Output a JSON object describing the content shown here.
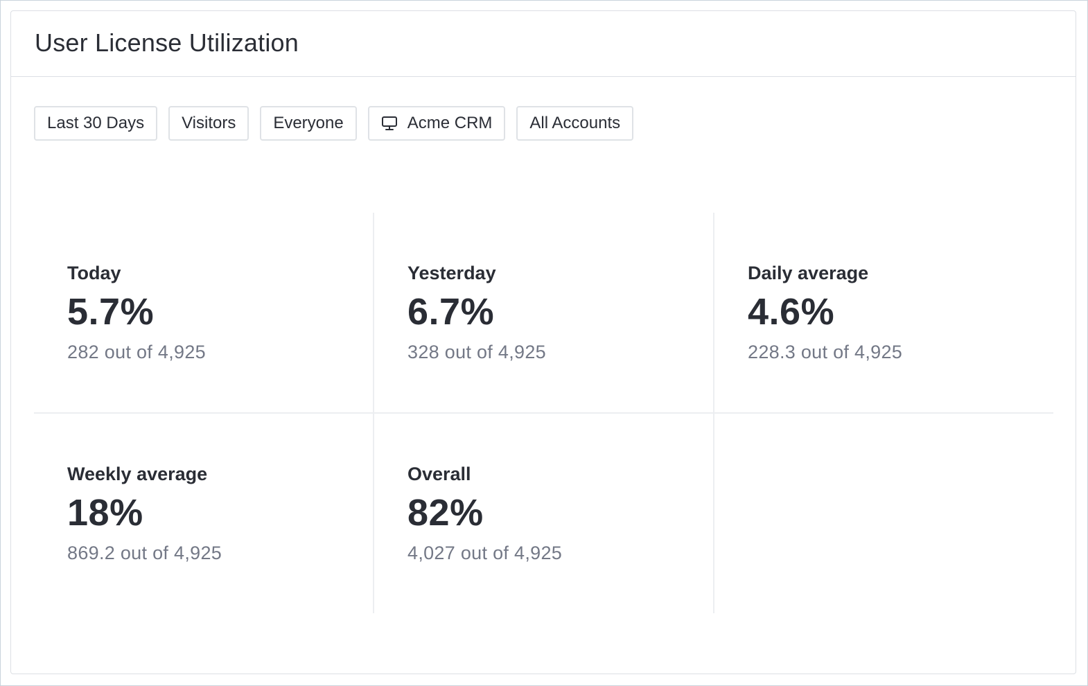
{
  "card": {
    "title": "User License Utilization"
  },
  "filters": [
    {
      "label": "Last 30 Days"
    },
    {
      "label": "Visitors"
    },
    {
      "label": "Everyone"
    },
    {
      "label": "Acme CRM",
      "icon": "monitor-icon"
    },
    {
      "label": "All Accounts"
    }
  ],
  "stats": [
    {
      "label": "Today",
      "value": "5.7%",
      "sub": "282 out of 4,925"
    },
    {
      "label": "Yesterday",
      "value": "6.7%",
      "sub": "328 out of 4,925"
    },
    {
      "label": "Daily average",
      "value": "4.6%",
      "sub": "228.3 out of 4,925"
    },
    {
      "label": "Weekly average",
      "value": "18%",
      "sub": "869.2 out of 4,925"
    },
    {
      "label": "Overall",
      "value": "82%",
      "sub": "4,027 out of 4,925"
    }
  ]
}
